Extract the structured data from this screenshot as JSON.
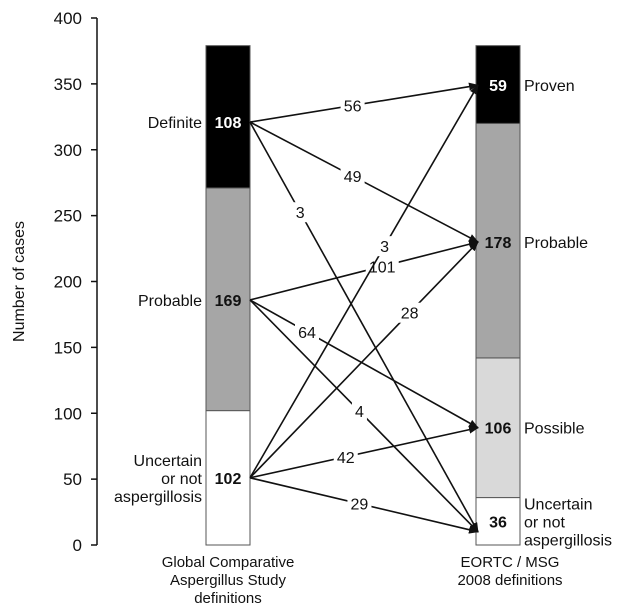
{
  "chart_data": {
    "type": "sankey-stacked-bar",
    "ylabel": "Number of cases",
    "ylim": [
      0,
      400
    ],
    "yticks": [
      0,
      50,
      100,
      150,
      200,
      250,
      300,
      350,
      400
    ],
    "bars": [
      {
        "name": "Global Comparative Aspergillus Study definitions",
        "name_lines": [
          "Global Comparative",
          "Aspergillus Study",
          "definitions"
        ],
        "segments": [
          {
            "label_lines": [
              "Uncertain",
              "or not",
              "aspergillosis"
            ],
            "value": 102,
            "color": "#ffffff"
          },
          {
            "label_lines": [
              "Probable"
            ],
            "value": 169,
            "color": "#a6a6a6"
          },
          {
            "label_lines": [
              "Definite"
            ],
            "value": 108,
            "color": "#000000"
          }
        ]
      },
      {
        "name": "EORTC / MSG 2008 definitions",
        "name_lines": [
          "EORTC / MSG",
          "2008 definitions"
        ],
        "segments": [
          {
            "label_lines": [
              "Uncertain",
              "or not",
              "aspergillosis"
            ],
            "value": 36,
            "color": "#ffffff"
          },
          {
            "label_lines": [
              "Possible"
            ],
            "value": 106,
            "color": "#d9d9d9"
          },
          {
            "label_lines": [
              "Probable"
            ],
            "value": 178,
            "color": "#a6a6a6"
          },
          {
            "label_lines": [
              "Proven"
            ],
            "value": 59,
            "color": "#000000"
          }
        ]
      }
    ],
    "flows": [
      {
        "from": "Definite",
        "to": "Proven",
        "value": 56
      },
      {
        "from": "Definite",
        "to": "Probable",
        "value": 49
      },
      {
        "from": "Definite",
        "to": "Uncertain or not aspergillosis",
        "value": 3
      },
      {
        "from": "Probable",
        "to": "Probable",
        "value": 101
      },
      {
        "from": "Probable",
        "to": "Possible",
        "value": 64
      },
      {
        "from": "Probable",
        "to": "Uncertain or not aspergillosis",
        "value": 4
      },
      {
        "from": "Uncertain or not aspergillosis",
        "to": "Proven",
        "value": 3
      },
      {
        "from": "Uncertain or not aspergillosis",
        "to": "Probable",
        "value": 28
      },
      {
        "from": "Uncertain or not aspergillosis",
        "to": "Possible",
        "value": 42
      },
      {
        "from": "Uncertain or not aspergillosis",
        "to": "Uncertain or not aspergillosis",
        "value": 29
      }
    ]
  }
}
